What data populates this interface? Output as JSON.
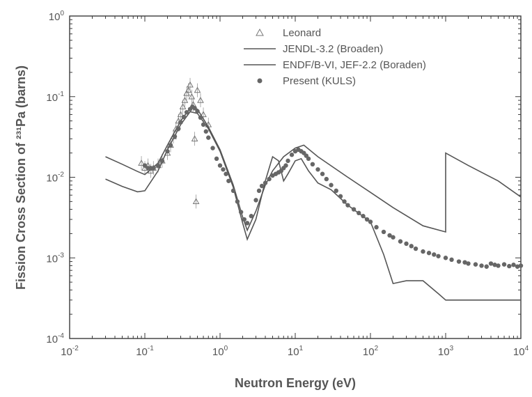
{
  "chart_data": {
    "type": "line",
    "xscale": "log",
    "yscale": "log",
    "xlim": [
      0.01,
      10000
    ],
    "ylim": [
      0.0001,
      1
    ],
    "xlabel": "Neutron Energy (eV)",
    "ylabel": "Fission Cross Section of ²³¹Pa (barns)",
    "x_ticks": [
      {
        "base": "10",
        "exp": "-2"
      },
      {
        "base": "10",
        "exp": "-1"
      },
      {
        "base": "10",
        "exp": "0"
      },
      {
        "base": "10",
        "exp": "1"
      },
      {
        "base": "10",
        "exp": "2"
      },
      {
        "base": "10",
        "exp": "3"
      },
      {
        "base": "10",
        "exp": "4"
      }
    ],
    "y_ticks": [
      {
        "base": "10",
        "exp": "-4"
      },
      {
        "base": "10",
        "exp": "-3"
      },
      {
        "base": "10",
        "exp": "-2"
      },
      {
        "base": "10",
        "exp": "-1"
      },
      {
        "base": "10",
        "exp": "0"
      }
    ],
    "legend_position": "top-right",
    "series": [
      {
        "name": "Leonard",
        "marker": "triangle",
        "x": [
          0.09,
          0.1,
          0.11,
          0.12,
          0.13,
          0.15,
          0.17,
          0.2,
          0.22,
          0.24,
          0.26,
          0.28,
          0.3,
          0.32,
          0.34,
          0.36,
          0.38,
          0.4,
          0.42,
          0.44,
          0.46,
          0.48,
          0.5,
          0.55,
          0.6,
          0.7
        ],
        "y": [
          0.015,
          0.013,
          0.014,
          0.012,
          0.013,
          0.014,
          0.016,
          0.02,
          0.025,
          0.032,
          0.04,
          0.05,
          0.06,
          0.075,
          0.09,
          0.11,
          0.12,
          0.14,
          0.1,
          0.08,
          0.03,
          0.005,
          0.12,
          0.09,
          0.06,
          0.045
        ]
      },
      {
        "name": "JENDL-3.2 (Broaden)",
        "marker": "none",
        "x": [
          0.03,
          0.05,
          0.08,
          0.1,
          0.15,
          0.2,
          0.3,
          0.4,
          0.5,
          0.7,
          1.0,
          1.5,
          2.0,
          2.3,
          3.0,
          4.0,
          5.0,
          7.0,
          10.0,
          13.0,
          20.0,
          50.0,
          100.0,
          200.0,
          500.0,
          1000.0,
          1000.0,
          2000.0,
          5000.0,
          10000.0
        ],
        "y": [
          0.018,
          0.0145,
          0.0118,
          0.0108,
          0.015,
          0.025,
          0.05,
          0.072,
          0.07,
          0.042,
          0.022,
          0.008,
          0.0032,
          0.0022,
          0.0038,
          0.008,
          0.012,
          0.018,
          0.023,
          0.025,
          0.018,
          0.01,
          0.0065,
          0.0042,
          0.0025,
          0.0021,
          0.02,
          0.014,
          0.009,
          0.0057
        ]
      },
      {
        "name": "ENDF/B-VI, JEF-2.2 (Boraden)",
        "marker": "none",
        "x": [
          0.03,
          0.05,
          0.08,
          0.1,
          0.15,
          0.2,
          0.3,
          0.4,
          0.5,
          0.7,
          1.0,
          1.5,
          2.0,
          2.3,
          3.0,
          4.0,
          5.0,
          6.0,
          7.0,
          8.0,
          10.0,
          12.0,
          15.0,
          20.0,
          30.0,
          50.0,
          100.0,
          150.0,
          200.0,
          300.0,
          500.0,
          800.0,
          1000.0,
          2000.0,
          5000.0,
          10000.0
        ],
        "y": [
          0.0095,
          0.0077,
          0.0066,
          0.0068,
          0.012,
          0.022,
          0.045,
          0.065,
          0.062,
          0.04,
          0.021,
          0.0075,
          0.0027,
          0.0017,
          0.003,
          0.009,
          0.018,
          0.016,
          0.009,
          0.011,
          0.016,
          0.017,
          0.012,
          0.0085,
          0.007,
          0.0045,
          0.0028,
          0.0011,
          0.00048,
          0.00052,
          0.00052,
          0.00036,
          0.0003,
          0.0003,
          0.0003,
          0.0003
        ]
      },
      {
        "name": "Present (KULS)",
        "marker": "circle",
        "x": [
          0.1,
          0.11,
          0.12,
          0.13,
          0.15,
          0.17,
          0.2,
          0.22,
          0.25,
          0.28,
          0.3,
          0.33,
          0.36,
          0.4,
          0.43,
          0.46,
          0.5,
          0.55,
          0.6,
          0.65,
          0.7,
          0.8,
          0.9,
          1.0,
          1.1,
          1.2,
          1.3,
          1.5,
          1.7,
          1.9,
          2.1,
          2.3,
          2.6,
          3.0,
          3.3,
          3.6,
          4.0,
          4.5,
          5.0,
          5.5,
          6.0,
          6.5,
          7.0,
          7.5,
          8.0,
          9.0,
          10.0,
          11.0,
          12.0,
          13.0,
          14.0,
          15.0,
          17.0,
          20.0,
          23.0,
          26.0,
          30.0,
          35.0,
          40.0,
          45.0,
          50.0,
          60.0,
          70.0,
          80.0,
          90.0,
          100.0,
          120.0,
          150.0,
          180.0,
          200.0,
          250.0,
          300.0,
          350.0,
          400.0,
          500.0,
          600.0,
          700.0,
          800.0,
          1000.0,
          1200.0,
          1500.0,
          1800.0,
          2000.0,
          2500.0,
          3000.0,
          3500.0,
          4000.0,
          4500.0,
          5000.0,
          6000.0,
          7000.0,
          8000.0,
          9000.0,
          10000.0
        ],
        "y": [
          0.014,
          0.013,
          0.013,
          0.013,
          0.014,
          0.016,
          0.021,
          0.025,
          0.032,
          0.04,
          0.048,
          0.056,
          0.064,
          0.07,
          0.075,
          0.072,
          0.066,
          0.055,
          0.045,
          0.037,
          0.031,
          0.023,
          0.017,
          0.014,
          0.0125,
          0.011,
          0.009,
          0.0068,
          0.005,
          0.0037,
          0.003,
          0.0027,
          0.0033,
          0.0052,
          0.0068,
          0.0078,
          0.0085,
          0.0095,
          0.0105,
          0.011,
          0.0115,
          0.012,
          0.013,
          0.014,
          0.016,
          0.019,
          0.021,
          0.022,
          0.021,
          0.02,
          0.0185,
          0.017,
          0.0145,
          0.0125,
          0.011,
          0.0095,
          0.008,
          0.0068,
          0.0058,
          0.005,
          0.0045,
          0.004,
          0.0036,
          0.0033,
          0.003,
          0.0028,
          0.0024,
          0.0021,
          0.0019,
          0.0018,
          0.0016,
          0.0015,
          0.0014,
          0.0013,
          0.0012,
          0.00115,
          0.0011,
          0.00105,
          0.001,
          0.00095,
          0.0009,
          0.00088,
          0.00085,
          0.00083,
          0.0008,
          0.00078,
          0.00085,
          0.00082,
          0.0008,
          0.00083,
          0.00079,
          0.00082,
          0.00078,
          0.0008
        ]
      }
    ]
  }
}
